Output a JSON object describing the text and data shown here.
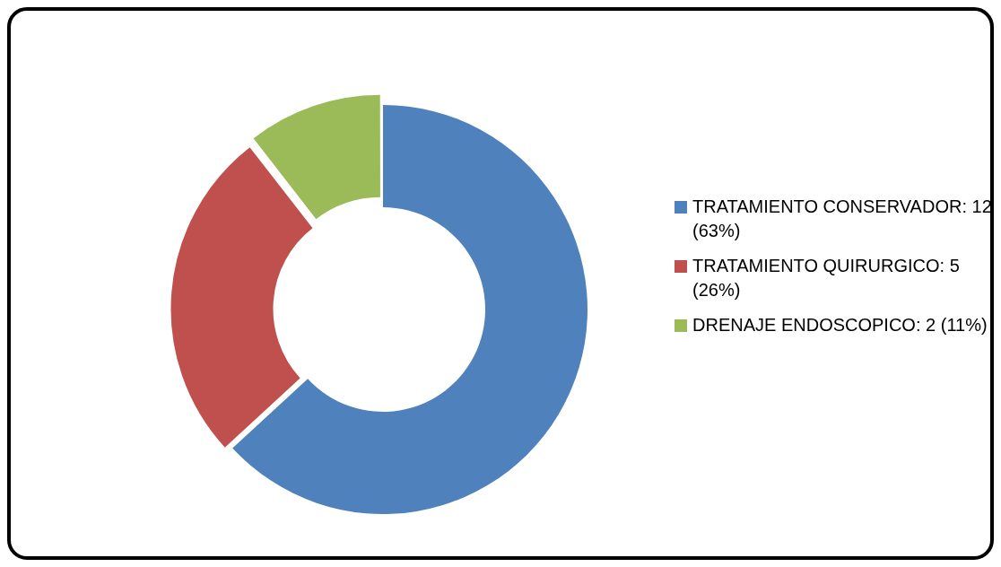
{
  "chart_data": {
    "type": "donut",
    "categories": [
      "TRATAMIENTO CONSERVADOR",
      "TRATAMIENTO QUIRURGICO",
      "DRENAJE ENDOSCOPICO"
    ],
    "values": [
      12,
      5,
      2
    ],
    "value_labels": [
      "12 (63%)",
      "5 (26%)",
      "2 (11%)"
    ],
    "colors": [
      "#4f81bd",
      "#c0504d",
      "#9bbb59"
    ],
    "legend": "right"
  }
}
